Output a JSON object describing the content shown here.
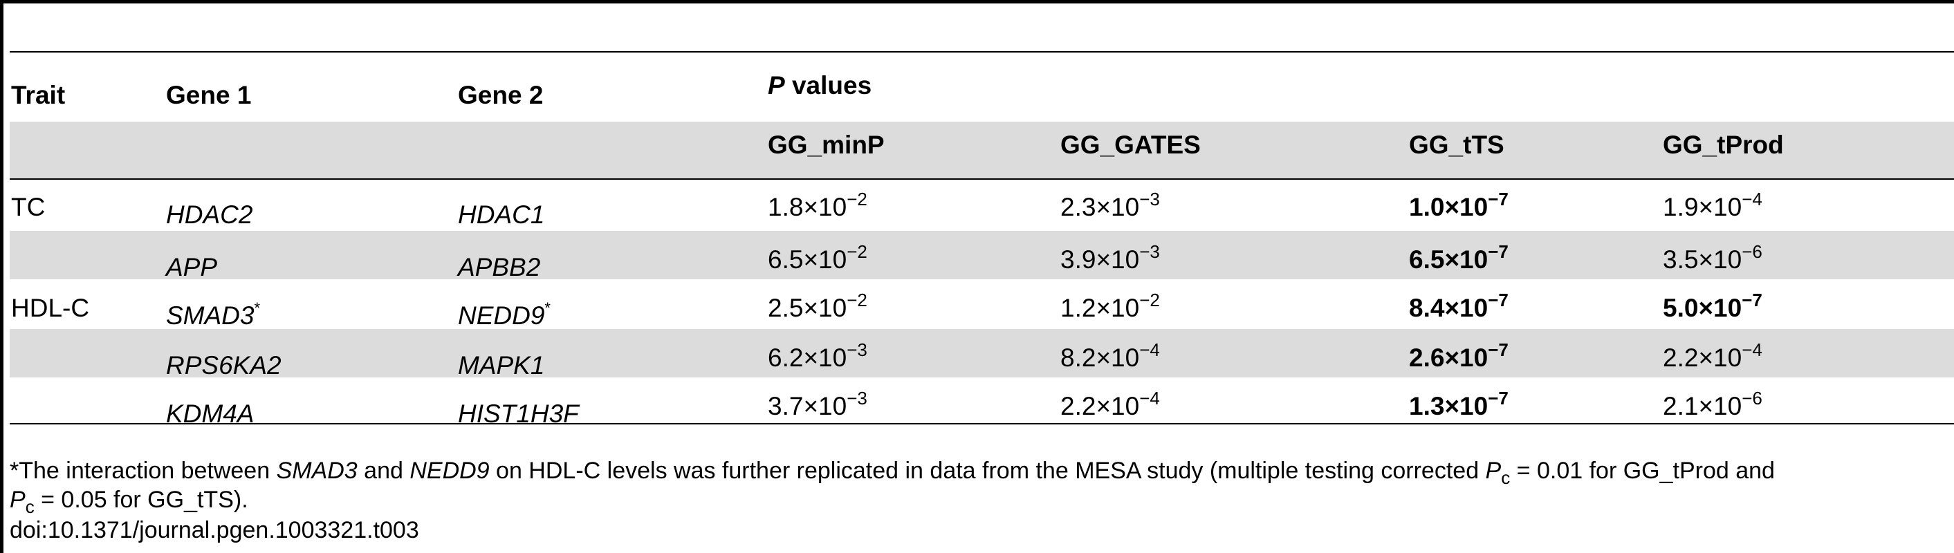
{
  "table": {
    "headers": {
      "trait": "Trait",
      "gene1": "Gene 1",
      "gene2": "Gene 2",
      "p_values_italic": "P",
      "p_values_rest": " values",
      "minp": "GG_minP",
      "gates": "GG_GATES",
      "tts": "GG_tTS",
      "tprod": "GG_tProd"
    },
    "rows": [
      {
        "trait": "TC",
        "gene1": "HDAC2",
        "gene1_star": "",
        "gene2": "HDAC1",
        "gene2_star": "",
        "minp": {
          "m": "1.8",
          "e": "−2"
        },
        "gates": {
          "m": "2.3",
          "e": "−3"
        },
        "tts": {
          "m": "1.0",
          "e": "−7"
        },
        "tprod": {
          "m": "1.9",
          "e": "−4"
        }
      },
      {
        "trait": "",
        "gene1": "APP",
        "gene1_star": "",
        "gene2": "APBB2",
        "gene2_star": "",
        "minp": {
          "m": "6.5",
          "e": "−2"
        },
        "gates": {
          "m": "3.9",
          "e": "−3"
        },
        "tts": {
          "m": "6.5",
          "e": "−7"
        },
        "tprod": {
          "m": "3.5",
          "e": "−6"
        }
      },
      {
        "trait": "HDL-C",
        "gene1": "SMAD3",
        "gene1_star": "*",
        "gene2": "NEDD9",
        "gene2_star": "*",
        "minp": {
          "m": "2.5",
          "e": "−2"
        },
        "gates": {
          "m": "1.2",
          "e": "−2"
        },
        "tts": {
          "m": "8.4",
          "e": "−7"
        },
        "tprod": {
          "m": "5.0",
          "e": "−7"
        }
      },
      {
        "trait": "",
        "gene1": "RPS6KA2",
        "gene1_star": "",
        "gene2": "MAPK1",
        "gene2_star": "",
        "minp": {
          "m": "6.2",
          "e": "−3"
        },
        "gates": {
          "m": "8.2",
          "e": "−4"
        },
        "tts": {
          "m": "2.6",
          "e": "−7"
        },
        "tprod": {
          "m": "2.2",
          "e": "−4"
        }
      },
      {
        "trait": "",
        "gene1": "KDM4A",
        "gene1_star": "",
        "gene2": "HIST1H3F",
        "gene2_star": "",
        "minp": {
          "m": "3.7",
          "e": "−3"
        },
        "gates": {
          "m": "2.2",
          "e": "−4"
        },
        "tts": {
          "m": "1.3",
          "e": "−7"
        },
        "tprod": {
          "m": "2.1",
          "e": "−6"
        }
      }
    ],
    "times_symbol": "×10"
  },
  "footnote": {
    "p1": "*The interaction between ",
    "gene_a": "SMAD3",
    "p2": " and ",
    "gene_b": "NEDD9",
    "p3": " on HDL-C levels was further replicated in data from the MESA study (multiple testing corrected ",
    "p_sym": "P",
    "p_sub": "c",
    "p4": " = 0.01 for GG_tProd and",
    "p5": " = 0.05 for GG_tTS).",
    "doi": "doi:10.1371/journal.pgen.1003321.t003"
  }
}
